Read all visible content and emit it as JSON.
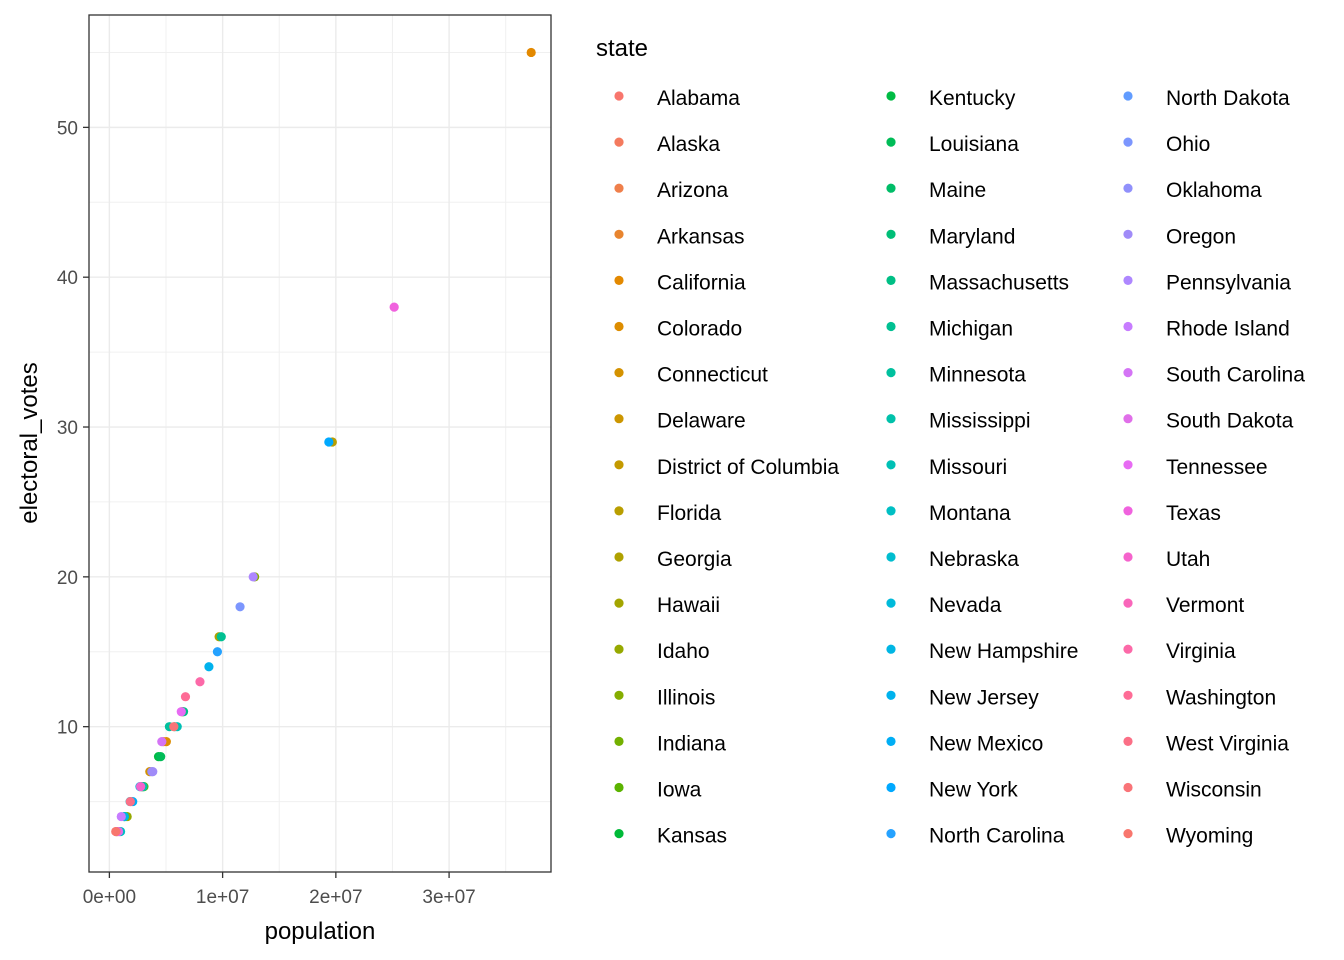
{
  "chart_data": {
    "type": "scatter",
    "xlabel": "population",
    "ylabel": "electoral_votes",
    "xlim": [
      -1800000,
      39000000
    ],
    "ylim": [
      0.3,
      57.5
    ],
    "x_ticks": [
      {
        "value": 0,
        "label": "0e+00"
      },
      {
        "value": 10000000,
        "label": "1e+07"
      },
      {
        "value": 20000000,
        "label": "2e+07"
      },
      {
        "value": 30000000,
        "label": "3e+07"
      }
    ],
    "y_ticks": [
      {
        "value": 10,
        "label": "10"
      },
      {
        "value": 20,
        "label": "20"
      },
      {
        "value": 30,
        "label": "30"
      },
      {
        "value": 40,
        "label": "40"
      },
      {
        "value": 50,
        "label": "50"
      }
    ],
    "grid": true,
    "legend": {
      "title": "state",
      "placement": "right",
      "columns": 3
    },
    "series": [
      {
        "name": "Alabama",
        "color": "#F8766D",
        "x": 4780000,
        "y": 9
      },
      {
        "name": "Alaska",
        "color": "#F47A5E",
        "x": 710000,
        "y": 3
      },
      {
        "name": "Arizona",
        "color": "#EF7F4B",
        "x": 6390000,
        "y": 11
      },
      {
        "name": "Arkansas",
        "color": "#E8852F",
        "x": 2920000,
        "y": 6
      },
      {
        "name": "California",
        "color": "#E38900",
        "x": 37250000,
        "y": 55
      },
      {
        "name": "Colorado",
        "color": "#DD8D00",
        "x": 5030000,
        "y": 9
      },
      {
        "name": "Connecticut",
        "color": "#D49200",
        "x": 3570000,
        "y": 7
      },
      {
        "name": "Delaware",
        "color": "#CC9600",
        "x": 900000,
        "y": 3
      },
      {
        "name": "District of Columbia",
        "color": "#C49A00",
        "x": 600000,
        "y": 3
      },
      {
        "name": "Florida",
        "color": "#B99E00",
        "x": 19690000,
        "y": 29
      },
      {
        "name": "Georgia",
        "color": "#AFA100",
        "x": 9690000,
        "y": 16
      },
      {
        "name": "Hawaii",
        "color": "#A3A500",
        "x": 1360000,
        "y": 4
      },
      {
        "name": "Idaho",
        "color": "#96A900",
        "x": 1570000,
        "y": 4
      },
      {
        "name": "Illinois",
        "color": "#85AD00",
        "x": 12830000,
        "y": 20
      },
      {
        "name": "Indiana",
        "color": "#73B000",
        "x": 6480000,
        "y": 11
      },
      {
        "name": "Iowa",
        "color": "#5BB300",
        "x": 3050000,
        "y": 6
      },
      {
        "name": "Kansas",
        "color": "#00BA38",
        "x": 2850000,
        "y": 6
      },
      {
        "name": "Kentucky",
        "color": "#00BB44",
        "x": 4340000,
        "y": 8
      },
      {
        "name": "Louisiana",
        "color": "#00BC57",
        "x": 4530000,
        "y": 8
      },
      {
        "name": "Maine",
        "color": "#00BD68",
        "x": 1330000,
        "y": 4
      },
      {
        "name": "Maryland",
        "color": "#00BE77",
        "x": 5770000,
        "y": 10
      },
      {
        "name": "Massachusetts",
        "color": "#00BF85",
        "x": 6550000,
        "y": 11
      },
      {
        "name": "Michigan",
        "color": "#00C092",
        "x": 9880000,
        "y": 16
      },
      {
        "name": "Minnesota",
        "color": "#00C09E",
        "x": 5300000,
        "y": 10
      },
      {
        "name": "Mississippi",
        "color": "#00C1AA",
        "x": 2970000,
        "y": 6
      },
      {
        "name": "Missouri",
        "color": "#00C0B5",
        "x": 5990000,
        "y": 10
      },
      {
        "name": "Montana",
        "color": "#00BFC4",
        "x": 990000,
        "y": 3
      },
      {
        "name": "Nebraska",
        "color": "#00BDCF",
        "x": 1830000,
        "y": 5
      },
      {
        "name": "Nevada",
        "color": "#00BADA",
        "x": 2700000,
        "y": 6
      },
      {
        "name": "New Hampshire",
        "color": "#00B6E4",
        "x": 1320000,
        "y": 4
      },
      {
        "name": "New Jersey",
        "color": "#00B2ED",
        "x": 8790000,
        "y": 14
      },
      {
        "name": "New Mexico",
        "color": "#00AEF5",
        "x": 2060000,
        "y": 5
      },
      {
        "name": "New York",
        "color": "#00A9FF",
        "x": 19380000,
        "y": 29
      },
      {
        "name": "North Carolina",
        "color": "#25A2FF",
        "x": 9540000,
        "y": 15
      },
      {
        "name": "North Dakota",
        "color": "#619CFF",
        "x": 670000,
        "y": 3
      },
      {
        "name": "Ohio",
        "color": "#7C96FE",
        "x": 11540000,
        "y": 18
      },
      {
        "name": "Oklahoma",
        "color": "#9090FB",
        "x": 3750000,
        "y": 7
      },
      {
        "name": "Oregon",
        "color": "#A08BF8",
        "x": 3830000,
        "y": 7
      },
      {
        "name": "Pennsylvania",
        "color": "#AE87FF",
        "x": 12700000,
        "y": 20
      },
      {
        "name": "Rhode Island",
        "color": "#C77CFF",
        "x": 1050000,
        "y": 4
      },
      {
        "name": "South Carolina",
        "color": "#D474F5",
        "x": 4630000,
        "y": 9
      },
      {
        "name": "South Dakota",
        "color": "#E06FE9",
        "x": 810000,
        "y": 3
      },
      {
        "name": "Tennessee",
        "color": "#E76BF3",
        "x": 6350000,
        "y": 11
      },
      {
        "name": "Texas",
        "color": "#F062DE",
        "x": 25150000,
        "y": 38
      },
      {
        "name": "Utah",
        "color": "#F563CC",
        "x": 2760000,
        "y": 6
      },
      {
        "name": "Vermont",
        "color": "#F966BA",
        "x": 630000,
        "y": 3
      },
      {
        "name": "Virginia",
        "color": "#FC69A8",
        "x": 8000000,
        "y": 13
      },
      {
        "name": "Washington",
        "color": "#FE6C96",
        "x": 6720000,
        "y": 12
      },
      {
        "name": "West Virginia",
        "color": "#FB6F86",
        "x": 1850000,
        "y": 5
      },
      {
        "name": "Wisconsin",
        "color": "#F97478",
        "x": 5690000,
        "y": 10
      },
      {
        "name": "Wyoming",
        "color": "#F8766D",
        "x": 560000,
        "y": 3
      }
    ]
  }
}
